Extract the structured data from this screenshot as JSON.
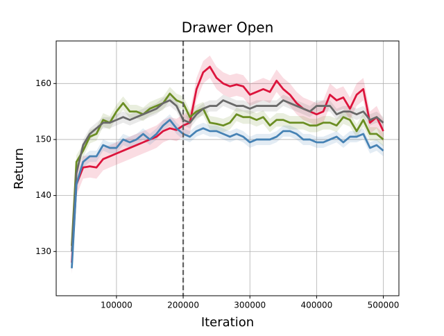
{
  "chart_data": {
    "type": "line",
    "title": "Drawer Open",
    "x_label": "Iteration",
    "y_label": "Return",
    "x": [
      33000,
      40000,
      50000,
      60000,
      70000,
      80000,
      90000,
      100000,
      110000,
      120000,
      130000,
      140000,
      150000,
      160000,
      170000,
      180000,
      190000,
      200000,
      210000,
      220000,
      230000,
      240000,
      250000,
      260000,
      270000,
      280000,
      290000,
      300000,
      310000,
      320000,
      330000,
      340000,
      350000,
      360000,
      370000,
      380000,
      390000,
      400000,
      410000,
      420000,
      430000,
      440000,
      450000,
      460000,
      470000,
      480000,
      490000,
      500000
    ],
    "series": [
      {
        "color": "#dc143c",
        "band": 2,
        "values": [
          128,
          142,
          145,
          145.2,
          145,
          146.5,
          147,
          147.5,
          148,
          148.5,
          149,
          149.5,
          150,
          150.5,
          151.5,
          152,
          151.7,
          152.5,
          153,
          159,
          162,
          163,
          161,
          160,
          159.5,
          159.8,
          159.5,
          158,
          158.5,
          159,
          158.5,
          160.5,
          159,
          158,
          156.5,
          155.5,
          155,
          154.5,
          155,
          158,
          157,
          157.5,
          155.5,
          158,
          159,
          153,
          154,
          151.5
        ]
      },
      {
        "color": "#6b8e23",
        "band": 1.2,
        "values": [
          131,
          146,
          148,
          150.5,
          151,
          153.5,
          153,
          155,
          156.5,
          155,
          155,
          154.5,
          155.5,
          156,
          156.5,
          158.2,
          157,
          156.5,
          154,
          155,
          155.5,
          153,
          152.8,
          152.5,
          153,
          154.5,
          154,
          154,
          153.5,
          154,
          152.5,
          153.5,
          153.5,
          153,
          153,
          153,
          152.5,
          152.5,
          153,
          153,
          152.5,
          154,
          153.5,
          151.5,
          153.5,
          151,
          151,
          150
        ]
      },
      {
        "color": "#696969",
        "band": 1,
        "values": [
          130,
          144,
          149,
          151,
          152,
          153,
          153,
          153.5,
          154,
          153.5,
          154,
          154.5,
          155,
          155.5,
          156.5,
          157,
          156,
          153.5,
          153,
          154.5,
          155.5,
          156,
          156,
          157,
          156.5,
          156,
          156,
          155.5,
          156,
          156,
          156,
          156,
          157,
          156.5,
          156,
          155.5,
          155,
          156,
          156,
          156,
          154.5,
          155,
          155,
          154.5,
          155,
          153.5,
          154,
          153
        ]
      },
      {
        "color": "#4682b4",
        "band": 1,
        "values": [
          127,
          142,
          146,
          147,
          147,
          149,
          148.5,
          148.5,
          150,
          149.5,
          150,
          151,
          150,
          151,
          152.5,
          153.5,
          152,
          151,
          150.5,
          151.5,
          152,
          151.5,
          151.5,
          151,
          150.5,
          151,
          150.5,
          149.5,
          150,
          150,
          150,
          150.5,
          151.5,
          151.5,
          151,
          150,
          150,
          149.5,
          149.5,
          150,
          150.5,
          149.5,
          150.5,
          150.5,
          151,
          148.5,
          149,
          148
        ]
      }
    ],
    "vline_x": 200000,
    "xlim": [
      9650,
      523350
    ],
    "ylim": [
      122.1,
      167.6
    ],
    "xticks": [
      100000,
      200000,
      300000,
      400000,
      500000
    ],
    "yticks": [
      130,
      140,
      150,
      160
    ],
    "grid": true
  }
}
